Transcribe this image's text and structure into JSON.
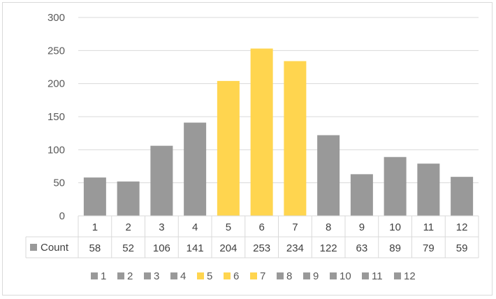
{
  "chart_data": {
    "type": "bar",
    "categories": [
      "1",
      "2",
      "3",
      "4",
      "5",
      "6",
      "7",
      "8",
      "9",
      "10",
      "11",
      "12"
    ],
    "series": [
      {
        "name": "Count",
        "values": [
          58,
          52,
          106,
          141,
          204,
          253,
          234,
          122,
          63,
          89,
          79,
          59
        ]
      }
    ],
    "yticks": [
      "0",
      "50",
      "100",
      "150",
      "200",
      "250",
      "300"
    ],
    "ylim": [
      0,
      300
    ],
    "grid": true,
    "legend_position": "bottom",
    "table_label": "Count",
    "colors": {
      "gray": "#999999",
      "highlight": "#ffd54f",
      "grid": "#d9d9d9",
      "table_border": "#d9d9d9",
      "text": "#595959"
    },
    "highlighted_categories": [
      "5",
      "6",
      "7"
    ]
  }
}
